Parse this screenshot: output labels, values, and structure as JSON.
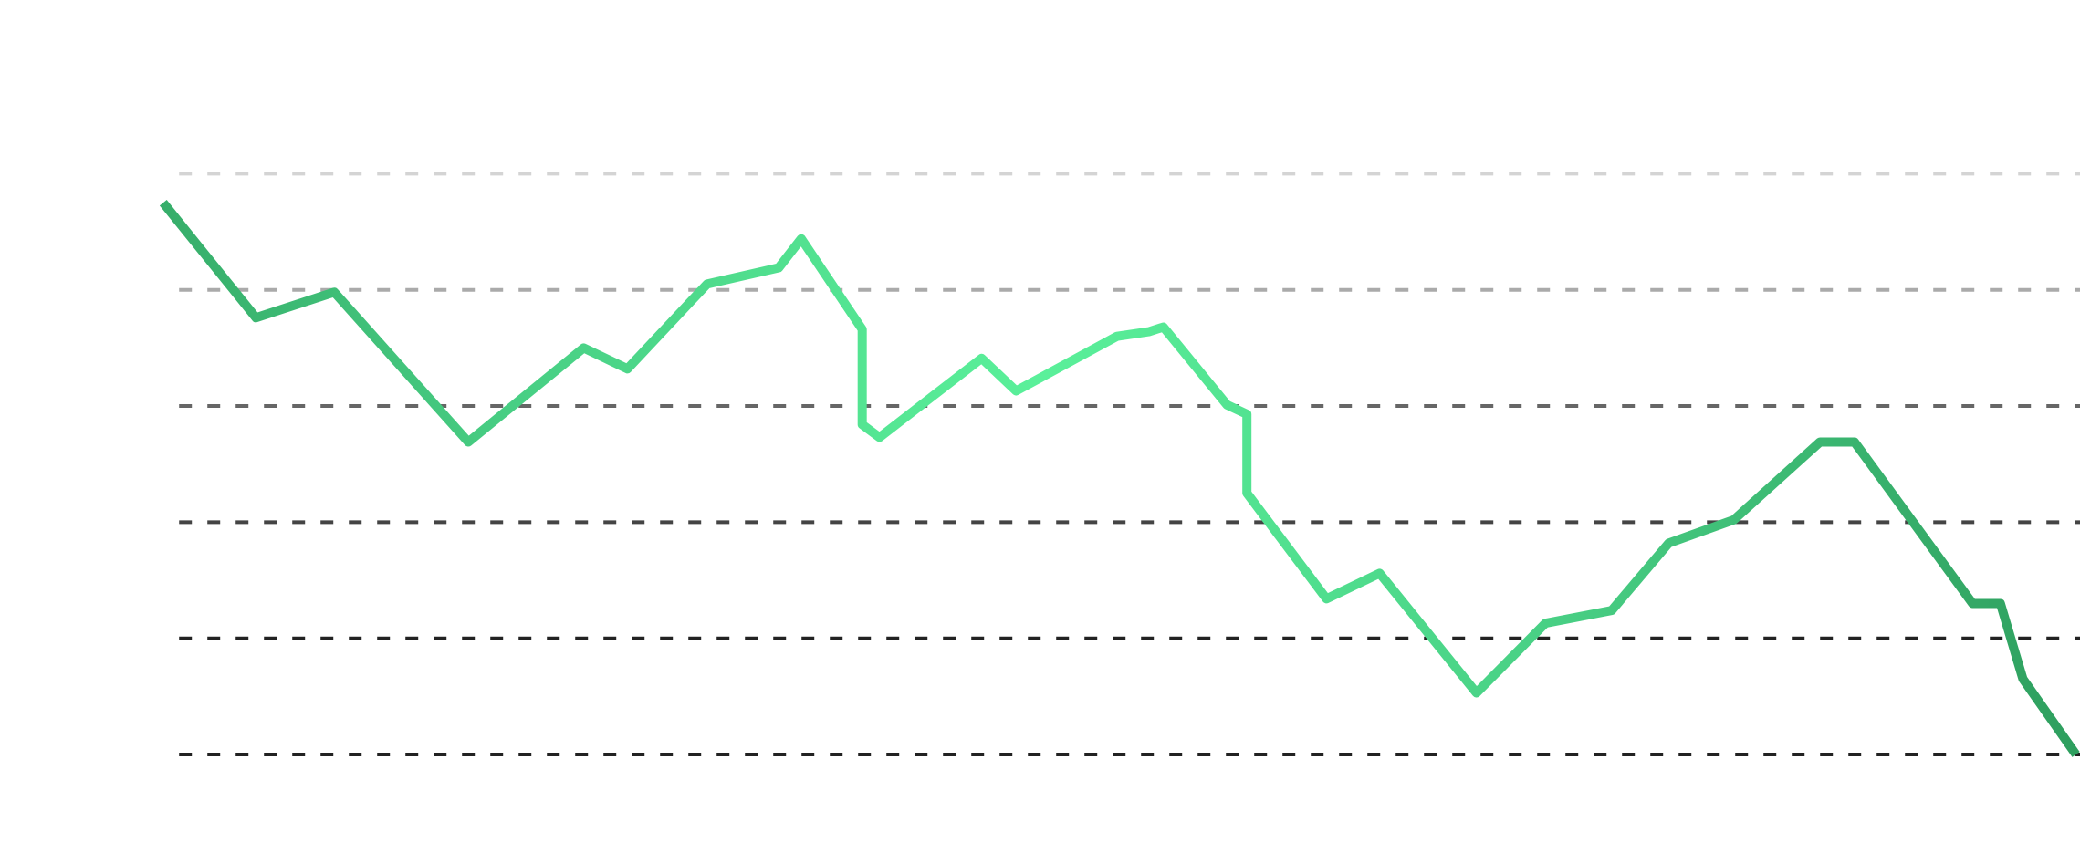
{
  "chart_data": {
    "type": "line",
    "x": [
      123,
      193,
      252,
      353,
      440,
      473,
      533,
      587,
      604,
      650,
      650,
      663,
      740,
      766,
      842,
      866,
      877,
      925,
      940,
      940,
      1000,
      1040,
      1113,
      1165,
      1215,
      1258,
      1307,
      1372,
      1398,
      1487,
      1508,
      1525,
      1565
    ],
    "xlim": [
      0,
      1568
    ],
    "series": [
      {
        "color": [
          "#2e9e5e",
          "#48cf84",
          "#5af09a",
          "#48cf84",
          "#2e9e5e"
        ],
        "values": [
          4.75,
          3.76,
          3.98,
          2.69,
          3.5,
          3.32,
          4.05,
          4.19,
          4.44,
          3.66,
          2.84,
          2.73,
          3.41,
          3.13,
          3.6,
          3.64,
          3.68,
          3.01,
          2.93,
          2.25,
          1.34,
          1.56,
          0.53,
          1.13,
          1.24,
          1.82,
          2.02,
          2.69,
          2.69,
          1.3,
          1.3,
          0.65,
          0
        ]
      }
    ],
    "ylim": [
      0,
      5
    ],
    "yticks": [
      0,
      1,
      2,
      3,
      4,
      5
    ],
    "grid": true,
    "grid_colors": [
      "#222222",
      "#222222",
      "#444444",
      "#666666",
      "#aaaaaa",
      "#d4d4d4"
    ]
  }
}
